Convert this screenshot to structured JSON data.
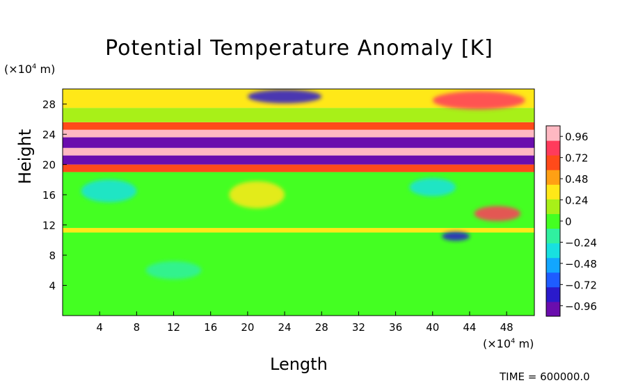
{
  "chart_data": {
    "type": "heatmap",
    "title": "Potential Temperature Anomaly [K]",
    "xlabel": "Length",
    "ylabel": "Height",
    "x_unit": "(×10⁴ m)",
    "y_unit": "(×10⁴ m)",
    "xlim": [
      0,
      51
    ],
    "ylim": [
      0,
      30
    ],
    "x_ticks": [
      4,
      8,
      12,
      16,
      20,
      24,
      28,
      32,
      36,
      40,
      44,
      48
    ],
    "y_ticks": [
      4,
      8,
      12,
      16,
      20,
      24,
      28
    ],
    "colorbar": {
      "range": [
        -1.08,
        1.08
      ],
      "tick_values": [
        0.96,
        0.72,
        0.48,
        0.24,
        0,
        -0.24,
        -0.48,
        -0.72,
        -0.96
      ],
      "tick_labels": [
        "0.96",
        "0.72",
        "0.48",
        "0.24",
        "0",
        "−0.24",
        "−0.48",
        "−0.72",
        "−0.96"
      ],
      "colors": [
        "#6a0dad",
        "#2a1acb",
        "#1e5cff",
        "#12a6ff",
        "#18e0e0",
        "#30f0a0",
        "#44ff22",
        "#a8f018",
        "#ffe818",
        "#ffa014",
        "#ff4a1a",
        "#ff3b5c",
        "#ffb8c2"
      ]
    },
    "bands": [
      {
        "y": [
          0,
          11
        ],
        "value": 0.0
      },
      {
        "y": [
          11,
          11.6
        ],
        "value": 0.3
      },
      {
        "y": [
          11.6,
          19
        ],
        "value": 0.05
      },
      {
        "y": [
          19,
          20
        ],
        "value": 0.7
      },
      {
        "y": [
          20,
          21.2
        ],
        "value": -1.0
      },
      {
        "y": [
          21.2,
          22.2
        ],
        "value": 1.0
      },
      {
        "y": [
          22.2,
          23.6
        ],
        "value": -1.0
      },
      {
        "y": [
          23.6,
          24.6
        ],
        "value": 1.0
      },
      {
        "y": [
          24.6,
          25.6
        ],
        "value": 0.6
      },
      {
        "y": [
          25.6,
          27.5
        ],
        "value": 0.1
      },
      {
        "y": [
          27.5,
          30
        ],
        "value": 0.4
      }
    ],
    "features": [
      {
        "name": "upper-cold-cell",
        "x": 24,
        "y": 29,
        "rx": 4,
        "ry": 0.9,
        "value": -0.9
      },
      {
        "name": "upper-warm-cell",
        "x": 45,
        "y": 28.5,
        "rx": 5,
        "ry": 1.2,
        "value": 0.75
      },
      {
        "name": "warm-blob-a",
        "x": 21,
        "y": 16,
        "rx": 3,
        "ry": 1.8,
        "value": 0.3
      },
      {
        "name": "cool-blob-a",
        "x": 5,
        "y": 16.5,
        "rx": 3,
        "ry": 1.5,
        "value": -0.3
      },
      {
        "name": "cool-blob-b",
        "x": 40,
        "y": 17,
        "rx": 2.5,
        "ry": 1.2,
        "value": -0.25
      },
      {
        "name": "warm-patch-c",
        "x": 47,
        "y": 13.5,
        "rx": 2.5,
        "ry": 1,
        "value": 0.9
      },
      {
        "name": "cold-patch-d",
        "x": 42.5,
        "y": 10.5,
        "rx": 1.5,
        "ry": 0.6,
        "value": -0.9
      },
      {
        "name": "cool-streak-e",
        "x": 12,
        "y": 6,
        "rx": 3,
        "ry": 1.2,
        "value": -0.2
      }
    ]
  },
  "labels": {
    "title": "Potential Temperature Anomaly [K]",
    "xlabel": "Length",
    "ylabel": "Height",
    "x_unit_prefix": "(×10",
    "x_unit_exp": "4",
    "x_unit_suffix": " m)",
    "y_unit_prefix": "(×10",
    "y_unit_exp": "4",
    "y_unit_suffix": " m)",
    "footer": "TIME = 600000.0"
  }
}
